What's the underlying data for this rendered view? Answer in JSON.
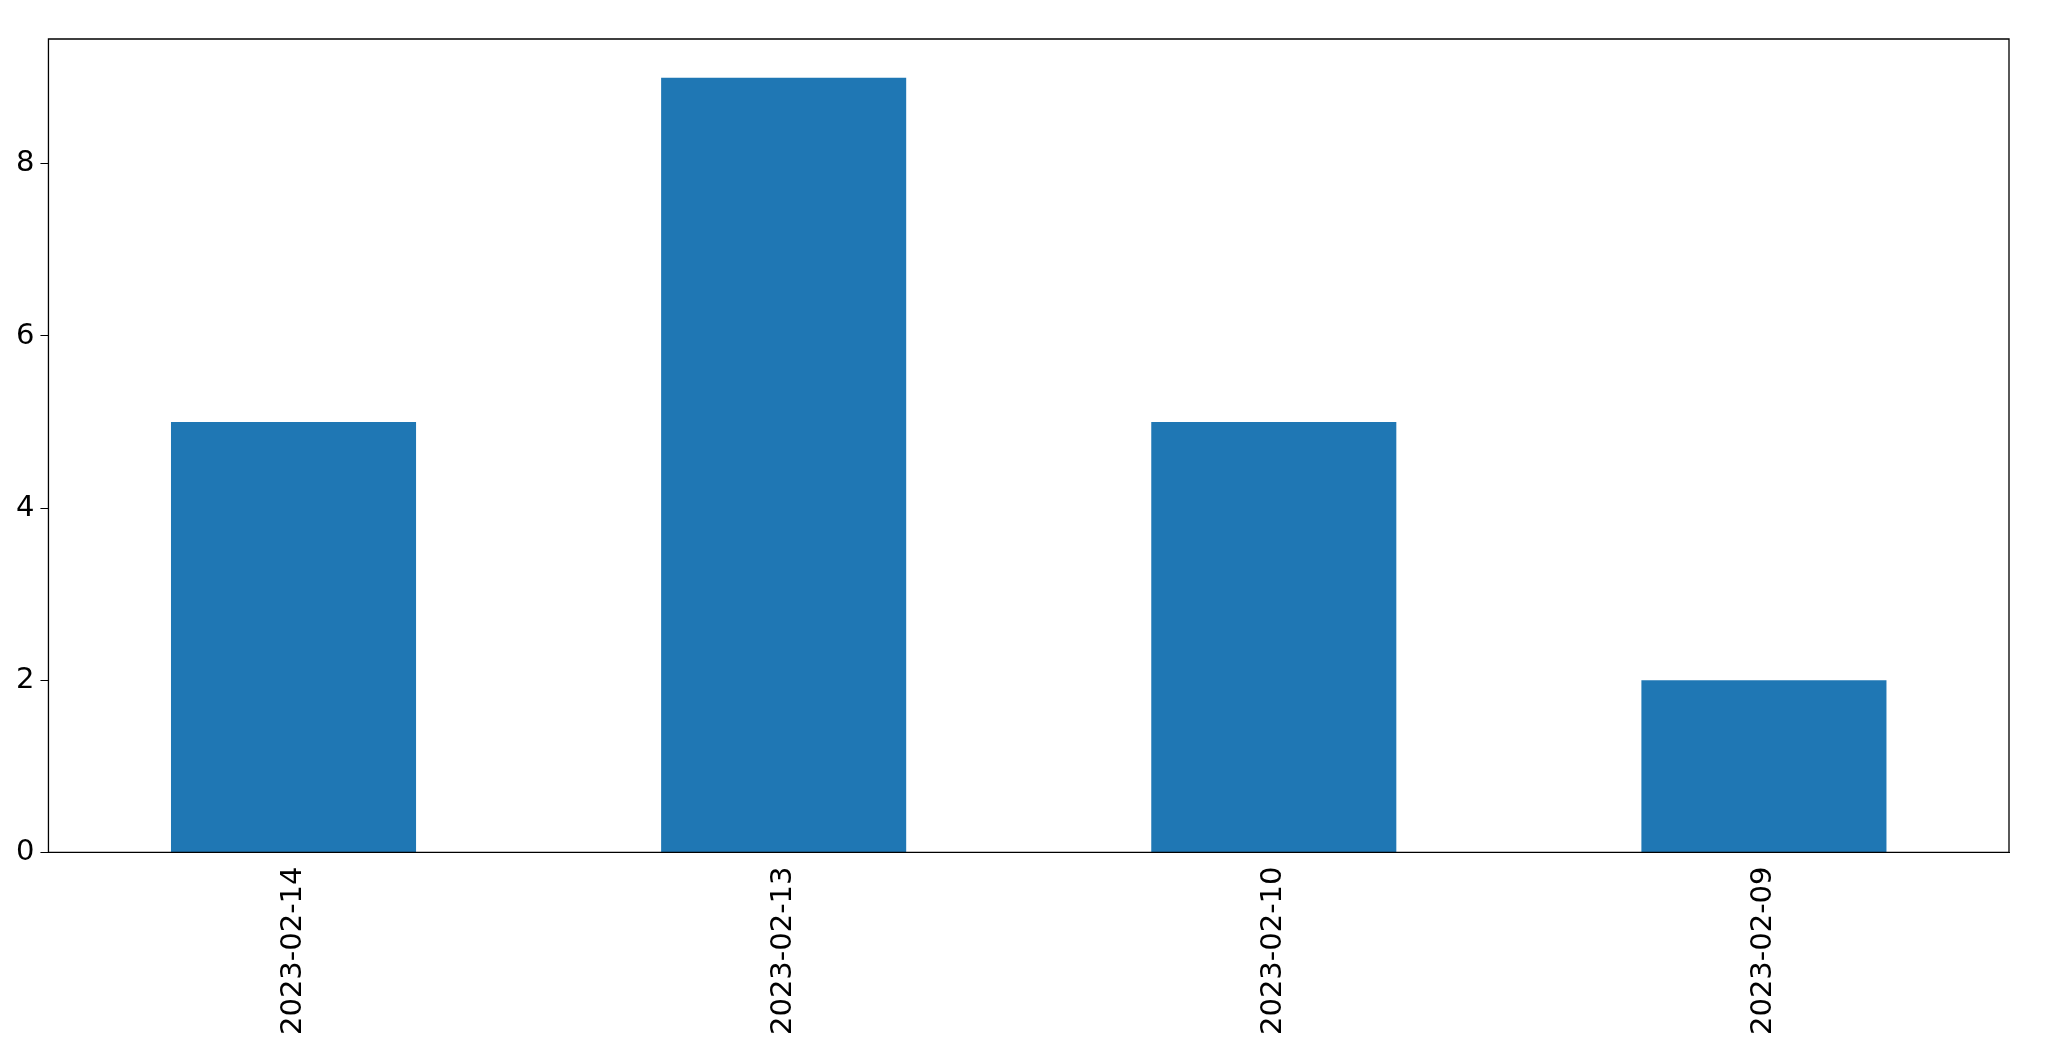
{
  "chart_data": {
    "type": "bar",
    "categories": [
      "2023-02-14",
      "2023-02-13",
      "2023-02-10",
      "2023-02-09"
    ],
    "values": [
      5,
      9,
      5,
      2
    ],
    "color": "#1f77b4",
    "ylim": [
      0,
      9.45
    ],
    "yticks": [
      0,
      2,
      4,
      6,
      8
    ],
    "grid": false,
    "legend": false
  }
}
